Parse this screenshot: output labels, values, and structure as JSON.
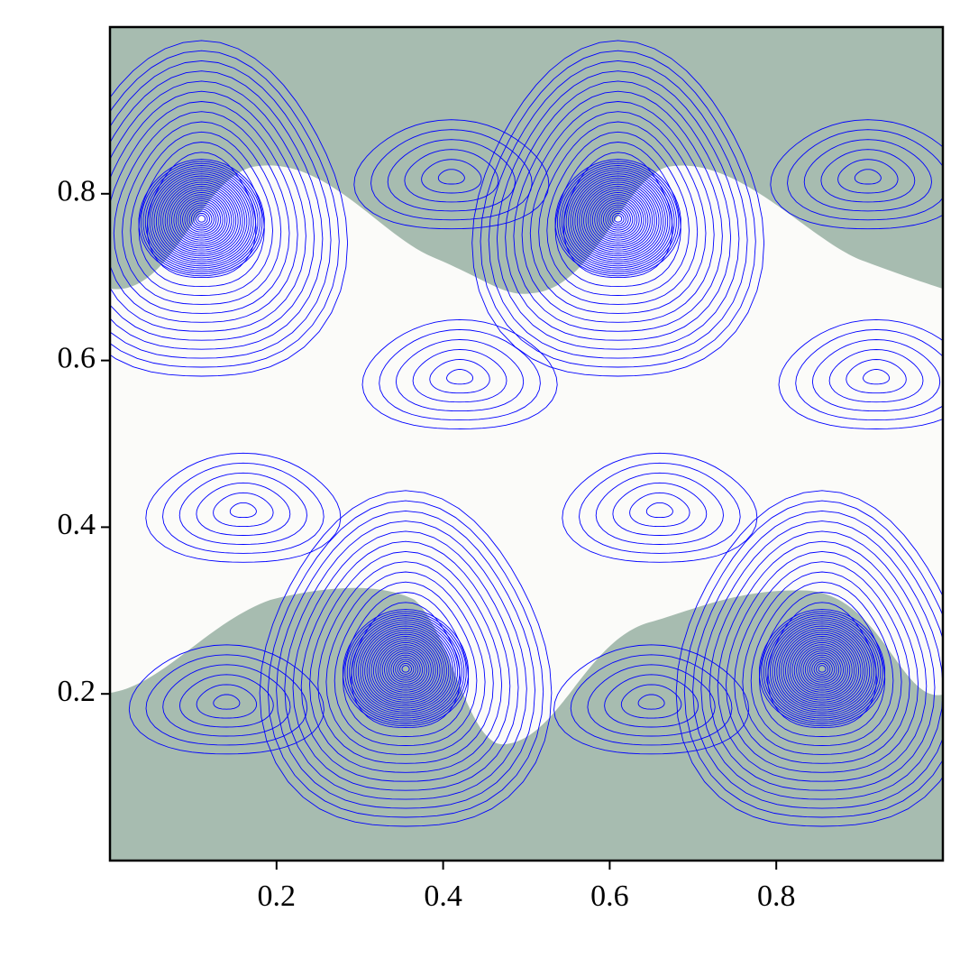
{
  "chart_data": {
    "type": "contour",
    "xlim": [
      0,
      1
    ],
    "ylim": [
      0,
      1
    ],
    "xticks": [
      0.2,
      0.4,
      0.6,
      0.8
    ],
    "yticks": [
      0.2,
      0.4,
      0.6,
      0.8
    ],
    "line_color": "#0000ff",
    "fill_color": "#a7bcb0",
    "band_color": "#fbfbf9",
    "vortices": [
      {
        "x": 0.11,
        "y": 0.77
      },
      {
        "x": 0.61,
        "y": 0.77
      },
      {
        "x": 0.355,
        "y": 0.23
      },
      {
        "x": 0.855,
        "y": 0.23
      }
    ],
    "eddies": [
      {
        "x": 0.42,
        "y": 0.58
      },
      {
        "x": 0.92,
        "y": 0.58
      },
      {
        "x": 0.16,
        "y": 0.42
      },
      {
        "x": 0.66,
        "y": 0.42
      },
      {
        "x": 0.41,
        "y": 0.82
      },
      {
        "x": 0.91,
        "y": 0.82
      },
      {
        "x": 0.14,
        "y": 0.19
      },
      {
        "x": 0.65,
        "y": 0.19
      }
    ]
  }
}
